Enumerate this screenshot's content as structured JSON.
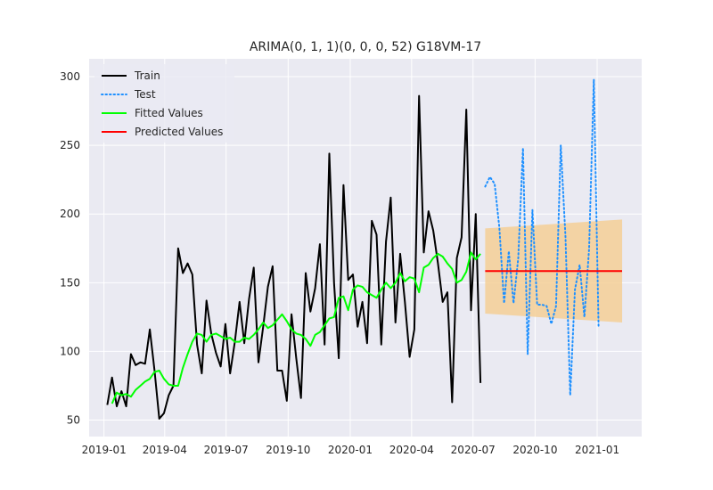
{
  "chart_data": {
    "type": "line",
    "title": "ARIMA(0, 1, 1)(0, 0, 0, 52) G18VM-17",
    "xlabel": "",
    "ylabel": "",
    "x_axis_type": "date",
    "xlim": [
      "2018-12-10",
      "2021-03-08"
    ],
    "ylim": [
      38,
      313
    ],
    "grid": true,
    "legend_position": "top-left",
    "x_ticks": [
      {
        "date": "2019-01-01",
        "label": "2019-01"
      },
      {
        "date": "2019-04-01",
        "label": "2019-04"
      },
      {
        "date": "2019-07-01",
        "label": "2019-07"
      },
      {
        "date": "2019-10-01",
        "label": "2019-10"
      },
      {
        "date": "2020-01-01",
        "label": "2020-01"
      },
      {
        "date": "2020-04-01",
        "label": "2020-04"
      },
      {
        "date": "2020-07-01",
        "label": "2020-07"
      },
      {
        "date": "2020-10-01",
        "label": "2020-10"
      },
      {
        "date": "2021-01-01",
        "label": "2021-01"
      }
    ],
    "y_ticks": [
      50,
      100,
      150,
      200,
      250,
      300
    ],
    "series": [
      {
        "name": "Train",
        "color": "#000000",
        "style": "solid",
        "start_date": "2019-01-06",
        "step_days": 7,
        "values": [
          61,
          81,
          60,
          71,
          60,
          98,
          90,
          92,
          91,
          116,
          86,
          51,
          55,
          68,
          75,
          175,
          157,
          164,
          156,
          105,
          84,
          137,
          113,
          99,
          89,
          120,
          84,
          107,
          136,
          106,
          138,
          161,
          92,
          118,
          147,
          162,
          86,
          86,
          64,
          127,
          95,
          66,
          157,
          129,
          146,
          178,
          105,
          244,
          150,
          95,
          221,
          152,
          156,
          118,
          136,
          106,
          195,
          185,
          105,
          180,
          212,
          121,
          171,
          136,
          96,
          116,
          286,
          172,
          202,
          188,
          164,
          136,
          143,
          63,
          168,
          183,
          276,
          130,
          200,
          77
        ]
      },
      {
        "name": "Test",
        "color": "#1e90ff",
        "style": "dotted",
        "start_date": "2020-07-19",
        "step_days": 7,
        "values": [
          220,
          227,
          222,
          190,
          135,
          173,
          135,
          168,
          248,
          98,
          203,
          134,
          134,
          133,
          120,
          133,
          250,
          183,
          68,
          145,
          163,
          125,
          175,
          298,
          118
        ]
      },
      {
        "name": "Fitted Values",
        "color": "#00ff00",
        "style": "solid",
        "start_date": "2019-01-13",
        "step_days": 7,
        "values": [
          62,
          70,
          68,
          69,
          67,
          72,
          75,
          78,
          80,
          85,
          86,
          80,
          76,
          75,
          75,
          88,
          98,
          107,
          113,
          112,
          107,
          112,
          113,
          111,
          109,
          110,
          107,
          107,
          110,
          109,
          112,
          116,
          121,
          117,
          119,
          123,
          127,
          122,
          116,
          113,
          112,
          109,
          104,
          112,
          114,
          119,
          124,
          125,
          139,
          140,
          130,
          145,
          148,
          147,
          143,
          141,
          139,
          145,
          150,
          146,
          150,
          157,
          151,
          154,
          153,
          143,
          161,
          163,
          168,
          171,
          169,
          164,
          160,
          150,
          152,
          158,
          172,
          167,
          171
        ]
      },
      {
        "name": "Predicted Values",
        "color": "#ff0000",
        "style": "solid",
        "start_date": "2020-07-19",
        "end_date": "2021-02-07",
        "value": 158.5
      }
    ],
    "confidence_band": {
      "color": "#f5cf97",
      "start_date": "2020-07-19",
      "end_date": "2021-02-07",
      "lower": [
        127.5,
        121
      ],
      "upper": [
        189.5,
        196
      ]
    }
  }
}
